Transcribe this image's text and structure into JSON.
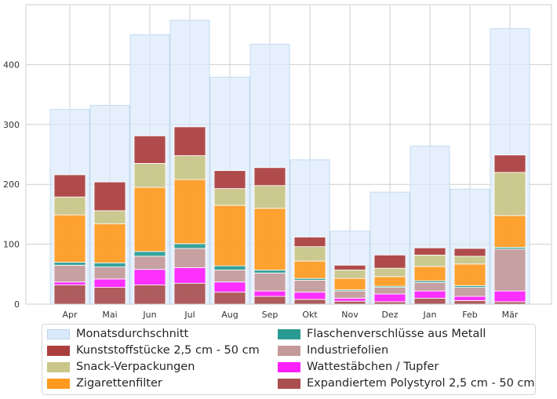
{
  "chart_data": {
    "type": "bar",
    "subtype": "stacked-with-background-bars",
    "title": "",
    "xlabel": "",
    "ylabel": "",
    "categories": [
      "Apr",
      "Mai",
      "Jun",
      "Jul",
      "Aug",
      "Sep",
      "Okt",
      "Nov",
      "Dez",
      "Jan",
      "Feb",
      "Mär"
    ],
    "ylim": [
      0,
      500
    ],
    "yticks": [
      0,
      100,
      200,
      300,
      400
    ],
    "grid": true,
    "legend_position": "bottom",
    "background_series": {
      "name": "Monatsdurchschnitt",
      "color": "#dbeafb",
      "values": [
        325,
        332,
        450,
        474,
        379,
        434,
        241,
        122,
        187,
        264,
        192,
        460
      ]
    },
    "series": [
      {
        "name": "Expandiertem Polystyrol  2,5 cm - 50 cm",
        "color": "#a94f4f",
        "values": [
          32,
          28,
          32,
          35,
          20,
          13,
          8,
          5,
          4,
          10,
          6,
          4
        ]
      },
      {
        "name": "Wattestäbchen / Tupfer",
        "color": "#ff1fff",
        "values": [
          5,
          14,
          26,
          26,
          17,
          9,
          12,
          5,
          13,
          12,
          7,
          18
        ]
      },
      {
        "name": "Industriefolien",
        "color": "#c4999a",
        "values": [
          28,
          20,
          22,
          32,
          20,
          30,
          20,
          12,
          11,
          14,
          15,
          70
        ]
      },
      {
        "name": "Flaschenverschlüsse aus Metall",
        "color": "#2a9b93",
        "values": [
          5,
          7,
          8,
          8,
          7,
          5,
          3,
          2,
          2,
          3,
          3,
          3
        ]
      },
      {
        "name": "Zigarettenfilter",
        "color": "#ff9a1f",
        "values": [
          79,
          65,
          107,
          107,
          101,
          103,
          29,
          19,
          16,
          24,
          36,
          53
        ]
      },
      {
        "name": "Snack-Verpackungen",
        "color": "#c9c687",
        "values": [
          30,
          22,
          40,
          40,
          28,
          38,
          24,
          14,
          14,
          19,
          13,
          72
        ]
      },
      {
        "name": "Kunststoffstücke 2,5 cm - 50 cm",
        "color": "#ab3d3d",
        "values": [
          37,
          48,
          46,
          48,
          30,
          30,
          16,
          8,
          22,
          12,
          13,
          29
        ]
      }
    ]
  },
  "legend": {
    "items": [
      {
        "label": "Monatsdurchschnitt",
        "color": "#dbeafb"
      },
      {
        "label": "Kunststoffstücke 2,5 cm - 50 cm",
        "color": "#ab3d3d"
      },
      {
        "label": "Snack-Verpackungen",
        "color": "#c9c687"
      },
      {
        "label": "Zigarettenfilter",
        "color": "#ff9a1f"
      },
      {
        "label": "Flaschenverschlüsse aus Metall",
        "color": "#2a9b93"
      },
      {
        "label": "Industriefolien",
        "color": "#c4999a"
      },
      {
        "label": "Wattestäbchen / Tupfer",
        "color": "#ff1fff"
      },
      {
        "label": "Expandiertem Polystyrol  2,5 cm - 50 cm",
        "color": "#a94f4f"
      }
    ]
  }
}
